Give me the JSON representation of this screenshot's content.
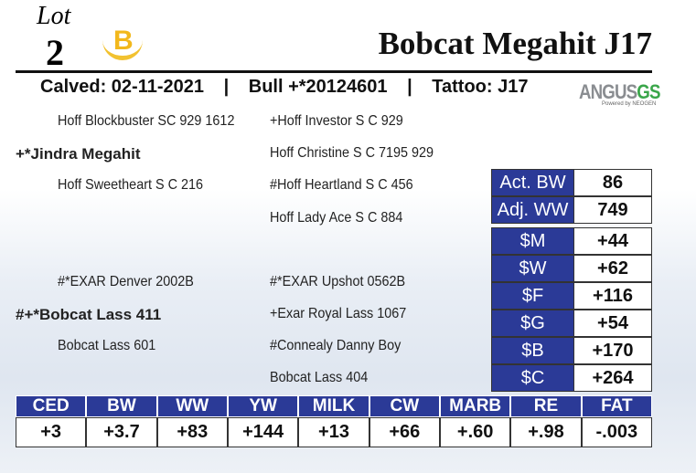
{
  "lot": {
    "word": "Lot",
    "number": "2",
    "logo": "B"
  },
  "title": "Bobcat Megahit J17",
  "info": {
    "items": [
      "Calved: 02-11-2021",
      "Bull +*20124601",
      "Tattoo: J17"
    ],
    "separator": "|"
  },
  "brand": {
    "name": "ANGUS",
    "suffix": "GS",
    "tagline": "Powered by NEOGEN"
  },
  "pedigree": [
    "Hoff Blockbuster SC 929 1612",
    "+Hoff Investor S C 929",
    "+*Jindra Megahit",
    "Hoff Christine S C 7195 929",
    "Hoff Sweetheart S C 216",
    "#Hoff Heartland S C 456",
    "Hoff Lady Ace S C 884",
    "#*EXAR Denver 2002B",
    "#*EXAR Upshot 0562B",
    "#+*Bobcat Lass 411",
    "+Exar Royal Lass 1067",
    "Bobcat Lass 601",
    "#Connealy Danny Boy",
    "Bobcat Lass 404"
  ],
  "weights": [
    [
      "Act. BW",
      "86"
    ],
    [
      "Adj. WW",
      "749"
    ]
  ],
  "indexes": [
    [
      "$M",
      "+44"
    ],
    [
      "$W",
      "+62"
    ],
    [
      "$F",
      "+116"
    ],
    [
      "$G",
      "+54"
    ],
    [
      "$B",
      "+170"
    ],
    [
      "$C",
      "+264"
    ]
  ],
  "epd": {
    "headers": [
      "CED",
      "BW",
      "WW",
      "YW",
      "MILK",
      "CW",
      "MARB",
      "RE",
      "FAT"
    ],
    "values": [
      "+3",
      "+3.7",
      "+83",
      "+144",
      "+13",
      "+66",
      "+.60",
      "+.98",
      "-.003"
    ]
  }
}
